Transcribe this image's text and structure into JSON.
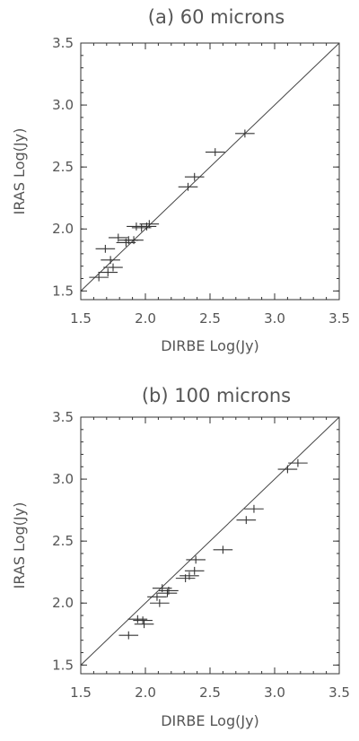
{
  "chart_data": [
    {
      "type": "scatter",
      "title": "(a) 60 microns",
      "xlabel": "DIRBE Log(Jy)",
      "ylabel": "IRAS Log(Jy)",
      "xlim": [
        1.5,
        3.5
      ],
      "ylim": [
        1.43,
        3.5
      ],
      "xticks": [
        "1.5",
        "2.0",
        "2.5",
        "3.0",
        "3.5"
      ],
      "yticks": [
        "1.5",
        "2.0",
        "2.5",
        "3.0",
        "3.5"
      ],
      "reference_line": "y = x",
      "marker": "error-cross",
      "points": [
        {
          "x": 1.64,
          "y": 1.61
        },
        {
          "x": 1.69,
          "y": 1.84
        },
        {
          "x": 1.71,
          "y": 1.65
        },
        {
          "x": 1.73,
          "y": 1.75
        },
        {
          "x": 1.75,
          "y": 1.69
        },
        {
          "x": 1.79,
          "y": 1.93
        },
        {
          "x": 1.85,
          "y": 1.89
        },
        {
          "x": 1.87,
          "y": 1.91
        },
        {
          "x": 1.91,
          "y": 1.91
        },
        {
          "x": 1.93,
          "y": 2.02
        },
        {
          "x": 1.97,
          "y": 2.01
        },
        {
          "x": 2.01,
          "y": 2.02
        },
        {
          "x": 2.03,
          "y": 2.04
        },
        {
          "x": 2.33,
          "y": 2.34
        },
        {
          "x": 2.38,
          "y": 2.42
        },
        {
          "x": 2.54,
          "y": 2.62
        },
        {
          "x": 2.77,
          "y": 2.77
        }
      ]
    },
    {
      "type": "scatter",
      "title": "(b) 100 microns",
      "xlabel": "DIRBE Log(Jy)",
      "ylabel": "IRAS Log(Jy)",
      "xlim": [
        1.5,
        3.5
      ],
      "ylim": [
        1.43,
        3.5
      ],
      "xticks": [
        "1.5",
        "2.0",
        "2.5",
        "3.0",
        "3.5"
      ],
      "yticks": [
        "1.5",
        "2.0",
        "2.5",
        "3.0",
        "3.5"
      ],
      "reference_line": "y = x",
      "marker": "error-cross",
      "points": [
        {
          "x": 1.87,
          "y": 1.74
        },
        {
          "x": 1.94,
          "y": 1.87
        },
        {
          "x": 1.98,
          "y": 1.86
        },
        {
          "x": 1.99,
          "y": 1.83
        },
        {
          "x": 2.09,
          "y": 2.05
        },
        {
          "x": 2.11,
          "y": 2.0
        },
        {
          "x": 2.13,
          "y": 2.12
        },
        {
          "x": 2.17,
          "y": 2.08
        },
        {
          "x": 2.18,
          "y": 2.1
        },
        {
          "x": 2.31,
          "y": 2.2
        },
        {
          "x": 2.34,
          "y": 2.22
        },
        {
          "x": 2.38,
          "y": 2.26
        },
        {
          "x": 2.39,
          "y": 2.35
        },
        {
          "x": 2.6,
          "y": 2.43
        },
        {
          "x": 2.78,
          "y": 2.67
        },
        {
          "x": 2.84,
          "y": 2.76
        },
        {
          "x": 3.1,
          "y": 3.08
        },
        {
          "x": 3.18,
          "y": 3.13
        }
      ]
    }
  ]
}
